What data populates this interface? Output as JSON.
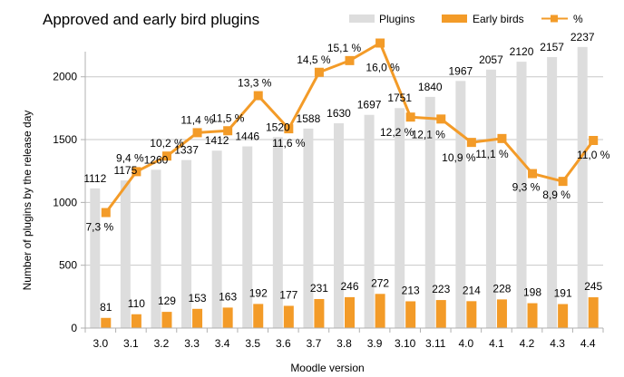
{
  "chart_data": {
    "type": "bar",
    "title": "Approved and early bird plugins",
    "xlabel": "Moodle version",
    "ylabel": "Number of plugins by the release day",
    "categories": [
      "3.0",
      "3.1",
      "3.2",
      "3.3",
      "3.4",
      "3.5",
      "3.6",
      "3.7",
      "3.8",
      "3.9",
      "3.10",
      "3.11",
      "4.0",
      "4.1",
      "4.2",
      "4.3",
      "4.4"
    ],
    "ylim": [
      0,
      2200
    ],
    "y_ticks": [
      "0",
      "500",
      "1000",
      "1500",
      "2000"
    ],
    "grid": true,
    "legend_position": "top-right",
    "series": [
      {
        "name": "Plugins",
        "type": "bar",
        "color": "#dddddd",
        "values": [
          1112,
          1175,
          1260,
          1337,
          1412,
          1446,
          1520,
          1588,
          1630,
          1697,
          1751,
          1840,
          1967,
          2057,
          2120,
          2157,
          2237
        ]
      },
      {
        "name": "Early birds",
        "type": "bar",
        "color": "#f39b28",
        "values": [
          81,
          110,
          129,
          153,
          163,
          192,
          177,
          231,
          246,
          272,
          213,
          223,
          214,
          228,
          198,
          191,
          245
        ]
      },
      {
        "name": "%",
        "type": "line",
        "color": "#f39b28",
        "values": [
          7.3,
          9.4,
          10.2,
          11.4,
          11.5,
          13.3,
          11.6,
          14.5,
          15.1,
          16.0,
          12.2,
          12.1,
          10.9,
          11.1,
          9.3,
          8.9,
          11.0
        ],
        "labels": [
          "7,3 %",
          "9,4 %",
          "10,2 %",
          "11,4 %",
          "11,5 %",
          "13,3 %",
          "11,6 %",
          "14,5 %",
          "15,1 %",
          "16,0 %",
          "12,2 %",
          "12,1 %",
          "10,9 %",
          "11,1 %",
          "9,3 %",
          "8,9 %",
          "11,0 %"
        ]
      }
    ]
  }
}
